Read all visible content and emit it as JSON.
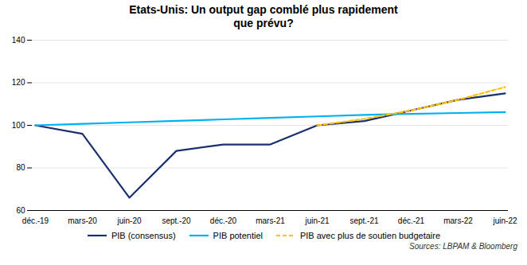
{
  "chart_data": {
    "type": "line",
    "title": "Etats-Unis: Un output gap comblé plus rapidement\nque prévu?",
    "caption": "Sources: LBPAM & Bloomberg",
    "categories": [
      "déc.-19",
      "mars-20",
      "juin-20",
      "sept.-20",
      "déc.-20",
      "mars-21",
      "juin-21",
      "sept.-21",
      "déc.-21",
      "mars-22",
      "juin-22"
    ],
    "series": [
      {
        "name": "PIB (consensus)",
        "color": "#1a2f6e",
        "line_style": "solid",
        "values": [
          100,
          96,
          66,
          88,
          91,
          91,
          100,
          102,
          107,
          112,
          115
        ]
      },
      {
        "name": "PIB potentiel",
        "color": "#00b0f0",
        "line_style": "solid",
        "values": [
          100,
          100.7,
          101.4,
          102.1,
          102.8,
          103.5,
          104.2,
          104.9,
          105.4,
          105.8,
          106.2
        ]
      },
      {
        "name": "PIB avec plus de soutien budgetaire",
        "color": "#ffc000",
        "line_style": "dashed",
        "values": [
          null,
          null,
          null,
          null,
          null,
          null,
          100,
          103,
          107,
          112,
          118
        ]
      }
    ],
    "ylim": [
      60,
      140
    ],
    "yticks": [
      60,
      80,
      100,
      120,
      140
    ],
    "grid": true,
    "legend": "bottom"
  }
}
